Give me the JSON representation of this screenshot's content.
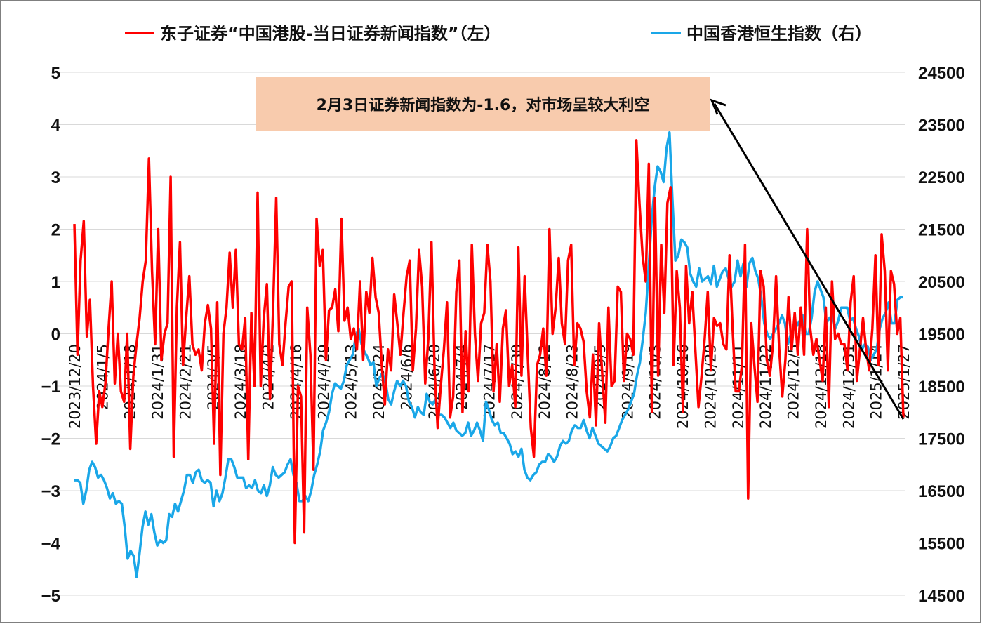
{
  "chart_data": {
    "type": "line",
    "title": "",
    "grid": true,
    "legend_placement": "top",
    "x_tick_labels": [
      "2023/12/20",
      "2024/1/5",
      "2024/1/18",
      "2024/1/31",
      "2024/2/21",
      "2024/3/5",
      "2024/3/18",
      "2024/4/2",
      "2024/4/16",
      "2024/4/29",
      "2024/5/13",
      "2024/5/24",
      "2024/6/6",
      "2024/6/20",
      "2024/7/4",
      "2024/7/17",
      "2024/7/30",
      "2024/8/12",
      "2024/8/23",
      "2024/9/5",
      "2024/9/19",
      "2024/10/3",
      "2024/10/16",
      "2024/10/29",
      "2024/11/11",
      "2024/11/22",
      "2024/12/5",
      "2024/12/18",
      "2024/12/31",
      "2025/1/14",
      "2025/1/27"
    ],
    "y_left": {
      "min": -5,
      "max": 5,
      "ticks": [
        "5",
        "4",
        "3",
        "2",
        "1",
        "0",
        "−1",
        "−2",
        "−3",
        "−4",
        "−5"
      ]
    },
    "y_right": {
      "min": 14500,
      "max": 24500,
      "ticks": [
        "24500",
        "23500",
        "22500",
        "21500",
        "20500",
        "19500",
        "18500",
        "17500",
        "16500",
        "15500",
        "14500"
      ]
    },
    "series": [
      {
        "name": "东子证券“中国港股-当日证券新闻指数”（左）",
        "axis": "left",
        "color": "#ff0000",
        "values": [
          2.1,
          -0.4,
          1.4,
          2.15,
          -0.05,
          0.65,
          -1.0,
          -2.1,
          -1.1,
          -1.4,
          -0.95,
          0.1,
          1.0,
          -0.95,
          0.0,
          -1.1,
          -1.3,
          0.0,
          -2.2,
          -0.8,
          -0.2,
          0.3,
          1.0,
          1.4,
          3.35,
          1.2,
          -0.2,
          2.0,
          -0.5,
          0.0,
          0.2,
          3.0,
          -2.35,
          0.5,
          1.75,
          -0.6,
          0.3,
          1.1,
          -0.2,
          -0.4,
          -0.3,
          -0.7,
          0.2,
          0.55,
          0.1,
          -2.1,
          0.6,
          -2.7,
          0.0,
          0.5,
          1.55,
          0.5,
          1.6,
          -0.2,
          -0.3,
          0.3,
          -2.4,
          0.4,
          -1.0,
          2.7,
          -1.0,
          0.3,
          0.95,
          -1.25,
          0.5,
          2.6,
          -0.2,
          -0.6,
          0.2,
          0.9,
          1.0,
          -4.0,
          -1.0,
          -1.2,
          -3.8,
          0.5,
          -0.4,
          -2.6,
          2.2,
          1.3,
          1.6,
          -0.5,
          0.45,
          0.5,
          0.85,
          0.05,
          2.2,
          0.25,
          0.5,
          -0.1,
          0.1,
          -0.3,
          1.0,
          -0.5,
          0.8,
          0.4,
          1.45,
          0.7,
          0.4,
          -0.6,
          -1.35,
          -0.3,
          -0.7,
          0.75,
          0.2,
          -0.4,
          0.4,
          1.1,
          1.4,
          -0.7,
          0.1,
          1.6,
          0.9,
          -0.95,
          -0.1,
          1.75,
          -0.7,
          -1.8,
          -1.0,
          -0.3,
          0.6,
          -1.6,
          -1.2,
          0.8,
          1.4,
          -1.5,
          0.05,
          -1.1,
          1.7,
          0.0,
          -0.9,
          0.2,
          0.4,
          1.7,
          1.0,
          -1.1,
          -0.2,
          -1.3,
          0.1,
          0.45,
          -1.0,
          -0.6,
          -1.4,
          1.65,
          -0.8,
          1.1,
          -0.4,
          -1.8,
          -2.35,
          -0.6,
          -0.4,
          0.1,
          -0.8,
          2.0,
          0.0,
          0.5,
          1.45,
          0.2,
          -0.2,
          1.4,
          1.7,
          -0.6,
          0.2,
          0.1,
          -0.15,
          -1.1,
          -1.6,
          -0.4,
          -1.75,
          0.2,
          -0.75,
          -1.7,
          0.5,
          -1.0,
          -0.9,
          0.9,
          0.8,
          -0.9,
          0.0,
          -0.1,
          -0.4,
          3.7,
          2.5,
          1.5,
          1.0,
          3.25,
          -1.5,
          2.6,
          -0.8,
          1.7,
          0.4,
          2.5,
          2.8,
          -0.6,
          1.2,
          0.5,
          -1.5,
          1.3,
          0.2,
          0.8,
          -0.3,
          -1.4,
          -0.8,
          -0.1,
          0.8,
          -0.7,
          0.3,
          0.15,
          0.2,
          -0.2,
          -0.3,
          1.5,
          0.1,
          -1.1,
          -1.1,
          -0.6,
          1.7,
          -3.15,
          0.2,
          -0.6,
          -1.3,
          1.2,
          0.9,
          -0.5,
          -0.8,
          -0.2,
          1.1,
          -0.3,
          -1.2,
          -0.5,
          0.7,
          -0.3,
          0.4,
          -0.4,
          0.5,
          -0.4,
          2.0,
          0.1,
          -0.4,
          -0.1,
          -0.5,
          -0.9,
          0.5,
          -1.4,
          1.0,
          -0.1,
          0.0,
          -0.2,
          -0.2,
          -0.7,
          0.6,
          1.1,
          -0.9,
          -0.3,
          0.3,
          -0.3,
          -0.7,
          0.1,
          1.5,
          -0.6,
          1.9,
          1.2,
          -0.7,
          1.2,
          0.95,
          0.0,
          0.3,
          -1.6
        ]
      },
      {
        "name": "中国香港恒生指数（右）",
        "axis": "right",
        "color": "#1aa7e8",
        "values": [
          16700,
          16700,
          16650,
          16250,
          16500,
          16900,
          17050,
          16950,
          16750,
          16800,
          16700,
          16550,
          16350,
          16450,
          16250,
          16300,
          16250,
          15800,
          15200,
          15350,
          15250,
          14850,
          15300,
          15800,
          16100,
          15850,
          16050,
          15700,
          15450,
          15550,
          15500,
          15550,
          16050,
          16000,
          16250,
          16100,
          16300,
          16500,
          16800,
          16800,
          16650,
          16850,
          16900,
          16700,
          16650,
          16700,
          16650,
          16200,
          16500,
          16300,
          16450,
          16750,
          17100,
          17100,
          16950,
          16750,
          16750,
          16750,
          16550,
          16600,
          16550,
          16700,
          16500,
          16450,
          16600,
          16400,
          16600,
          16950,
          16800,
          16750,
          16800,
          16850,
          17000,
          17100,
          16800,
          16650,
          16300,
          16300,
          16400,
          16300,
          16500,
          16800,
          17000,
          17250,
          17650,
          17800,
          18000,
          18350,
          18550,
          18500,
          18450,
          18600,
          18900,
          19000,
          19100,
          19450,
          19600,
          19300,
          19150,
          19050,
          18900,
          18950,
          18500,
          18650,
          18750,
          18600,
          18250,
          18150,
          18400,
          18600,
          18500,
          18600,
          18500,
          18200,
          18100,
          17900,
          18100,
          18000,
          17950,
          18350,
          18200,
          18150,
          18250,
          17950,
          17950,
          17900,
          17800,
          17700,
          17800,
          17650,
          17600,
          17550,
          17600,
          17800,
          17550,
          17650,
          17800,
          17650,
          17450,
          18200,
          18050,
          17850,
          17750,
          17800,
          17600,
          17600,
          17500,
          17400,
          17200,
          17250,
          17150,
          17300,
          16900,
          16750,
          16700,
          16800,
          16850,
          17000,
          17050,
          17050,
          17200,
          17150,
          17050,
          17150,
          17350,
          17450,
          17400,
          17450,
          17650,
          17750,
          17700,
          17700,
          17850,
          17650,
          17500,
          17700,
          17550,
          17400,
          17350,
          17300,
          17250,
          17350,
          17500,
          17550,
          17700,
          17850,
          17950,
          18050,
          18200,
          18350,
          18700,
          18950,
          19400,
          19900,
          20800,
          21700,
          22300,
          22700,
          22600,
          22400,
          23050,
          23350,
          22050,
          20900,
          21000,
          21300,
          21250,
          21150,
          20650,
          20500,
          20400,
          20750,
          20500,
          20550,
          20600,
          20450,
          20800,
          20400,
          20550,
          20700,
          20750,
          20550,
          20400,
          20500,
          20900,
          20600,
          20850,
          20400,
          20850,
          20950,
          20700,
          20550,
          20200,
          19700,
          19500,
          19400,
          19500,
          19600,
          19700,
          19850,
          19700,
          19300,
          19500,
          19600,
          19650,
          19750,
          19850,
          19500,
          19500,
          19800,
          20300,
          20500,
          20350,
          20200,
          19700,
          19800,
          19850,
          19600,
          19750,
          20000,
          20000,
          20000,
          19750,
          19800,
          19600,
          19450,
          19200,
          19300,
          19250,
          19000,
          19100,
          19200,
          19600,
          19800,
          19900,
          20100,
          19700,
          19700,
          20150,
          20200,
          20200
        ]
      }
    ]
  },
  "annotation": {
    "text": "2月3日证券新闻指数为-1.6，对市场呈较大利空",
    "box_color": "#f8cbad"
  }
}
